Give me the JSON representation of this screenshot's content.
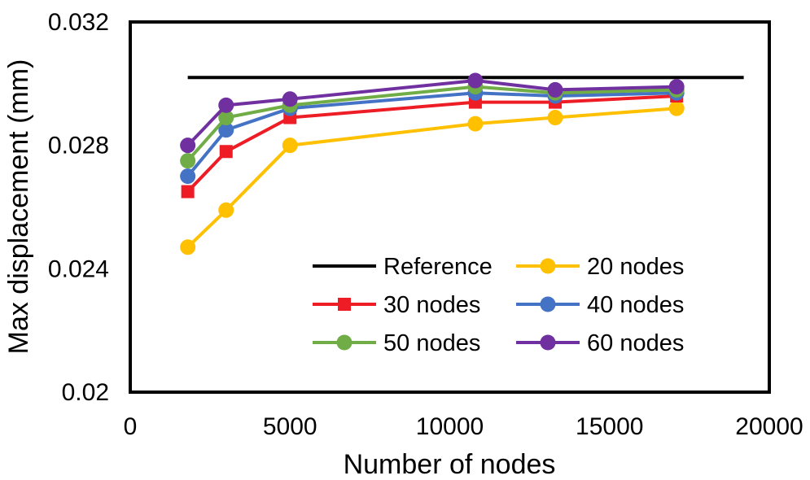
{
  "chart_data": {
    "type": "line",
    "title": "",
    "xlabel": "Number of nodes",
    "ylabel": "Max displacement (mm)",
    "xlim": [
      0,
      20000
    ],
    "ylim": [
      0.02,
      0.032
    ],
    "x_ticks": [
      "0",
      "5000",
      "10000",
      "15000",
      "20000"
    ],
    "y_ticks": [
      "0.02",
      "0.024",
      "0.028",
      "0.032"
    ],
    "grid": false,
    "legend": {
      "placement": "bottom-right",
      "columns": 2
    },
    "x": [
      1800,
      3000,
      5000,
      10800,
      13300,
      17100
    ],
    "reference": {
      "name": "Reference",
      "color": "#000000",
      "x": [
        1800,
        19200
      ],
      "values": [
        0.0302,
        0.0302
      ]
    },
    "series": [
      {
        "name": "20 nodes",
        "color": "#FFC000",
        "marker": "circle",
        "values": [
          0.0247,
          0.0259,
          0.028,
          0.0287,
          0.0289,
          0.0292
        ]
      },
      {
        "name": "30 nodes",
        "color": "#EE1C25",
        "marker": "square",
        "values": [
          0.0265,
          0.0278,
          0.0289,
          0.0294,
          0.0294,
          0.0296
        ]
      },
      {
        "name": "40 nodes",
        "color": "#4472C4",
        "marker": "circle",
        "values": [
          0.027,
          0.0285,
          0.0292,
          0.0297,
          0.0296,
          0.0297
        ]
      },
      {
        "name": "50 nodes",
        "color": "#70AD47",
        "marker": "circle",
        "values": [
          0.0275,
          0.0289,
          0.0293,
          0.0299,
          0.0297,
          0.0298
        ]
      },
      {
        "name": "60 nodes",
        "color": "#7030A0",
        "marker": "circle",
        "values": [
          0.028,
          0.0293,
          0.0295,
          0.0301,
          0.0298,
          0.0299
        ]
      }
    ]
  }
}
